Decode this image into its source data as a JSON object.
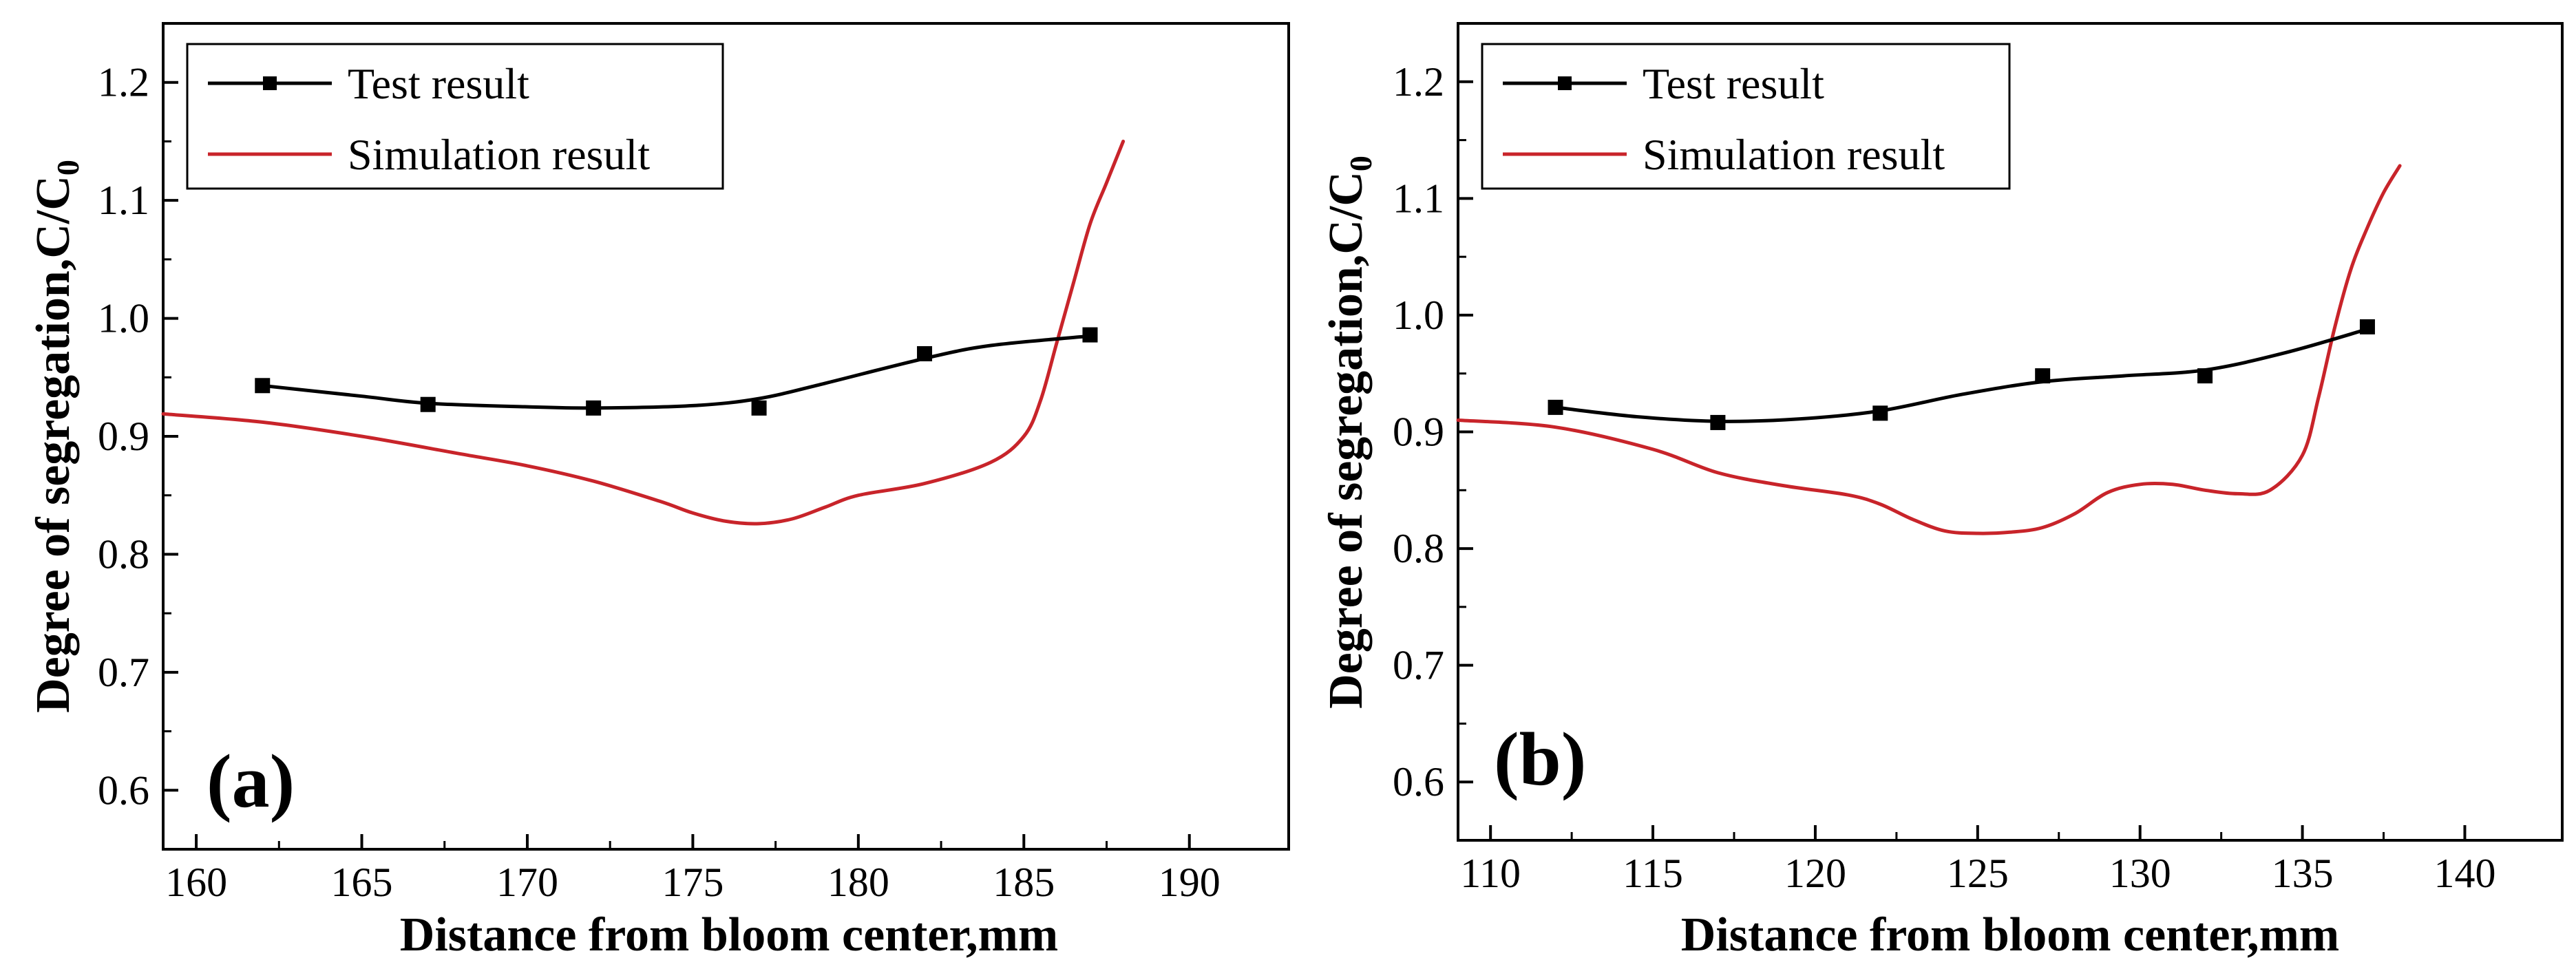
{
  "chart_data": [
    {
      "type": "line",
      "panel_label": "(a)",
      "xlabel": "Distance from bloom center,mm",
      "ylabel": "Degree of segregation,C/C",
      "ylabel_subscript": "0",
      "xlim": [
        159,
        193
      ],
      "ylim": [
        0.55,
        1.25
      ],
      "xticks": [
        160,
        165,
        170,
        175,
        180,
        185,
        190
      ],
      "yticks": [
        0.6,
        0.7,
        0.8,
        0.9,
        1.0,
        1.1,
        1.2
      ],
      "xtick_labels": [
        "160",
        "165",
        "170",
        "175",
        "180",
        "185",
        "190"
      ],
      "ytick_labels": [
        "0.6",
        "0.7",
        "0.8",
        "0.9",
        "1.0",
        "1.1",
        "1.2"
      ],
      "legend": {
        "position": "top-left"
      },
      "series": [
        {
          "name": "Test result",
          "color": "#000000",
          "style": "line-square-markers",
          "x": [
            162,
            167,
            172,
            177,
            182,
            187
          ],
          "y": [
            0.943,
            0.927,
            0.924,
            0.924,
            0.97,
            0.986
          ],
          "curve_x": [
            162,
            165,
            167,
            170,
            172,
            175,
            177,
            179,
            182,
            184,
            187
          ],
          "curve_y": [
            0.943,
            0.934,
            0.928,
            0.925,
            0.924,
            0.926,
            0.932,
            0.945,
            0.966,
            0.977,
            0.985
          ]
        },
        {
          "name": "Simulation result",
          "color": "#c8242a",
          "style": "line",
          "x": [
            159,
            162,
            165,
            168,
            170,
            172,
            174,
            175,
            176,
            177,
            178,
            179,
            180,
            182,
            184,
            185,
            185.5,
            186,
            186.5,
            187,
            187.5,
            188
          ],
          "y": [
            0.919,
            0.912,
            0.9,
            0.885,
            0.875,
            0.862,
            0.845,
            0.835,
            0.828,
            0.826,
            0.83,
            0.84,
            0.85,
            0.86,
            0.878,
            0.9,
            0.93,
            0.98,
            1.03,
            1.08,
            1.115,
            1.15
          ]
        }
      ]
    },
    {
      "type": "line",
      "panel_label": "(b)",
      "xlabel": "Distance from bloom center,mm",
      "ylabel": "Degree of segregation,C/C",
      "ylabel_subscript": "0",
      "xlim": [
        109,
        143
      ],
      "ylim": [
        0.55,
        1.25
      ],
      "xticks": [
        110,
        115,
        120,
        125,
        130,
        135,
        140
      ],
      "yticks": [
        0.6,
        0.7,
        0.8,
        0.9,
        1.0,
        1.1,
        1.2
      ],
      "xtick_labels": [
        "110",
        "115",
        "120",
        "125",
        "130",
        "135",
        "140"
      ],
      "ytick_labels": [
        "0.6",
        "0.7",
        "0.8",
        "0.9",
        "1.0",
        "1.1",
        "1.2"
      ],
      "legend": {
        "position": "top-left"
      },
      "series": [
        {
          "name": "Test result",
          "color": "#000000",
          "style": "line-square-markers",
          "x": [
            112,
            117,
            122,
            127,
            132,
            137
          ],
          "y": [
            0.921,
            0.908,
            0.916,
            0.948,
            0.948,
            0.99
          ],
          "curve_x": [
            112,
            114.5,
            117,
            119.5,
            122,
            124.5,
            127,
            129.5,
            132,
            134.5,
            137
          ],
          "curve_y": [
            0.921,
            0.913,
            0.909,
            0.911,
            0.918,
            0.932,
            0.943,
            0.948,
            0.953,
            0.968,
            0.988
          ]
        },
        {
          "name": "Simulation result",
          "color": "#c8242a",
          "style": "line",
          "x": [
            109,
            112,
            115,
            117,
            119,
            121,
            122,
            123,
            124,
            125,
            126,
            127,
            128,
            129,
            130,
            131,
            132,
            133,
            134,
            135,
            135.5,
            136,
            136.5,
            137,
            137.5,
            138
          ],
          "y": [
            0.91,
            0.904,
            0.885,
            0.865,
            0.854,
            0.846,
            0.838,
            0.825,
            0.815,
            0.813,
            0.814,
            0.818,
            0.83,
            0.848,
            0.855,
            0.855,
            0.85,
            0.847,
            0.85,
            0.88,
            0.93,
            0.99,
            1.04,
            1.075,
            1.105,
            1.128
          ]
        }
      ]
    }
  ]
}
